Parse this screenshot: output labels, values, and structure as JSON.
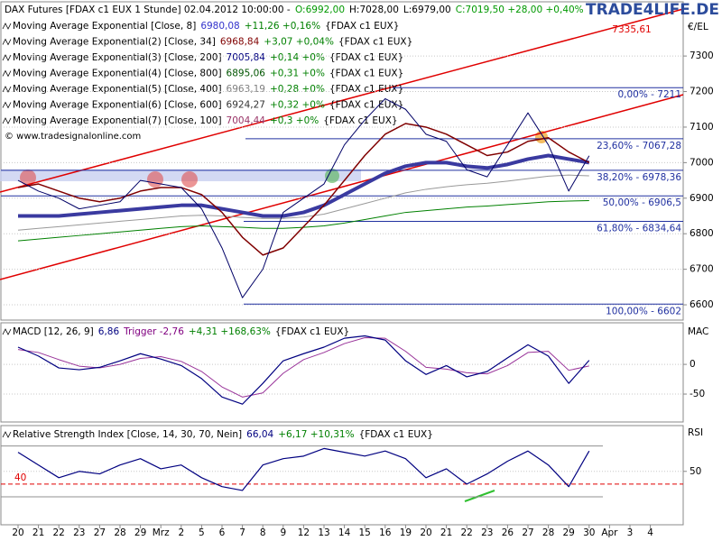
{
  "brand": "TRADE4LIFE.DE",
  "copyright": "© www.tradesignalonline.com",
  "chart_data": [
    {
      "type": "line",
      "title": "DAX Futures [FDAX c1 EUX  1 Stunde] 02.04.2012 10:00:00 -",
      "quote": [
        {
          "text": "O:6992,00",
          "color": "#009900"
        },
        {
          "text": "H:7028,00",
          "color": "#000000"
        },
        {
          "text": "L:6979,00",
          "color": "#000000"
        },
        {
          "text": "C:7019,50 +28,00 +0,40%",
          "color": "#009900"
        }
      ],
      "indicators": [
        {
          "name": "Moving Average Exponential [Close, 8]",
          "value": "6980,08",
          "change": "+11,26 +0,16%",
          "source": "{FDAX c1 EUX}",
          "color": "#3333cc"
        },
        {
          "name": "Moving Average Exponential(2) [Close, 34]",
          "value": "6968,84",
          "change": "+3,07 +0,04%",
          "source": "{FDAX c1 EUX}",
          "color": "#800000"
        },
        {
          "name": "Moving Average Exponential(3) [Close, 200]",
          "value": "7005,84",
          "change": "+0,14 +0%",
          "source": "{FDAX c1 EUX}",
          "color": "#000080"
        },
        {
          "name": "Moving Average Exponential(4) [Close, 800]",
          "value": "6895,06",
          "change": "+0,31 +0%",
          "source": "{FDAX c1 EUX}",
          "color": "#005500"
        },
        {
          "name": "Moving Average Exponential(5) [Close, 400]",
          "value": "6963,19",
          "change": "+0,28 +0%",
          "source": "{FDAX c1 EUX}",
          "color": "#808080"
        },
        {
          "name": "Moving Average Exponential(6) [Close, 600]",
          "value": "6924,27",
          "change": "+0,32 +0%",
          "source": "{FDAX c1 EUX}",
          "color": "#333333"
        },
        {
          "name": "Moving Average Exponential(7) [Close, 100]",
          "value": "7004,44",
          "change": "+0,3 +0%",
          "source": "{FDAX c1 EUX}",
          "color": "#993366"
        }
      ],
      "y_label": "€/EL",
      "channel_label": "7335,61",
      "ylim": [
        6557,
        7450
      ],
      "yticks": [
        6600,
        6700,
        6800,
        6900,
        7000,
        7100,
        7200,
        7300
      ],
      "grid": true,
      "fibonacci": [
        {
          "label": "0,00% - 7211",
          "value": 7211
        },
        {
          "label": "23,60% - 7067,28",
          "value": 7067.28
        },
        {
          "label": "38,20% - 6978,36",
          "value": 6978.36
        },
        {
          "label": "50,00% - 6906,5",
          "value": 6906.5
        },
        {
          "label": "61,80% - 6834,64",
          "value": 6834.64
        },
        {
          "label": "100,00% - 6602",
          "value": 6602
        }
      ],
      "series": [
        {
          "color": "#008000",
          "width": 1,
          "values": [
            6780,
            6785,
            6790,
            6795,
            6800,
            6805,
            6810,
            6815,
            6820,
            6822,
            6820,
            6818,
            6815,
            6815,
            6818,
            6822,
            6830,
            6840,
            6850,
            6860,
            6865,
            6870,
            6875,
            6878,
            6882,
            6886,
            6890,
            6892,
            6893,
            null,
            null,
            null
          ]
        },
        {
          "color": "#999999",
          "width": 1,
          "values": [
            6810,
            6815,
            6820,
            6825,
            6830,
            6835,
            6840,
            6845,
            6850,
            6852,
            6850,
            6846,
            6843,
            6843,
            6847,
            6855,
            6870,
            6885,
            6900,
            6915,
            6925,
            6932,
            6938,
            6942,
            6948,
            6955,
            6962,
            6965,
            6963,
            null,
            null,
            null
          ]
        },
        {
          "color": "#3a3aa0",
          "width": 4,
          "values": [
            6850,
            6850,
            6850,
            6855,
            6860,
            6865,
            6870,
            6875,
            6880,
            6880,
            6870,
            6860,
            6850,
            6850,
            6860,
            6880,
            6910,
            6940,
            6970,
            6990,
            7000,
            7000,
            6990,
            6985,
            6995,
            7010,
            7020,
            7010,
            7000,
            null,
            null,
            null
          ]
        },
        {
          "color": "#800000",
          "width": 1.5,
          "values": [
            6930,
            6940,
            6920,
            6900,
            6890,
            6900,
            6920,
            6930,
            6930,
            6910,
            6860,
            6790,
            6740,
            6760,
            6820,
            6880,
            6950,
            7020,
            7080,
            7110,
            7100,
            7080,
            7050,
            7020,
            7030,
            7060,
            7070,
            7030,
            7000,
            null,
            null,
            null
          ]
        },
        {
          "color": "#000066",
          "width": 1,
          "values": [
            6950,
            6920,
            6900,
            6870,
            6880,
            6890,
            6950,
            6940,
            6930,
            6870,
            6760,
            6620,
            6700,
            6860,
            6900,
            6940,
            7050,
            7120,
            7180,
            7150,
            7080,
            7060,
            6980,
            6960,
            7050,
            7140,
            7050,
            6920,
            7019.5,
            null,
            null,
            null
          ]
        }
      ]
    },
    {
      "type": "line",
      "header": [
        {
          "text": "MACD [12, 26, 9]",
          "color": "#000000"
        },
        {
          "text": "6,86",
          "color": "#000080"
        },
        {
          "text": "Trigger -2,76",
          "color": "#800080"
        },
        {
          "text": "+4,31 +168,63%",
          "color": "#008000"
        },
        {
          "text": "{FDAX c1 EUX}",
          "color": "#000000"
        }
      ],
      "y_label": "MAC",
      "ylim": [
        -97,
        70
      ],
      "yticks": [
        0,
        -50
      ],
      "grid": true,
      "series": [
        {
          "color": "#993399",
          "width": 1,
          "values": [
            25,
            20,
            8,
            -3,
            -6,
            0,
            10,
            13,
            5,
            -12,
            -38,
            -55,
            -48,
            -15,
            8,
            20,
            35,
            45,
            44,
            22,
            -5,
            -8,
            -14,
            -16,
            -2,
            20,
            22,
            -10,
            -2.76,
            null,
            null,
            null
          ]
        },
        {
          "color": "#000080",
          "width": 1.2,
          "values": [
            29,
            14,
            -6,
            -9,
            -5,
            6,
            18,
            9,
            -2,
            -24,
            -55,
            -67,
            -32,
            6,
            18,
            29,
            44,
            48,
            41,
            6,
            -17,
            -2,
            -21,
            -12,
            11,
            33,
            14,
            -32,
            6.86,
            null,
            null,
            null
          ]
        }
      ]
    },
    {
      "type": "line",
      "header": [
        {
          "text": "Relative Strength Index [Close, 14, 30, 70, Nein]",
          "color": "#000000"
        },
        {
          "text": "66,04",
          "color": "#000080"
        },
        {
          "text": "+6,17 +10,31%",
          "color": "#008000"
        },
        {
          "text": "{FDAX c1 EUX}",
          "color": "#000000"
        }
      ],
      "y_label": "RSI",
      "ylim": [
        8,
        86
      ],
      "yticks": [
        50
      ],
      "grid": true,
      "levels": [
        70,
        30
      ],
      "signal_level": 40,
      "categories": [
        "20",
        "21",
        "22",
        "23",
        "27",
        "28",
        "29",
        "Mrz",
        "2",
        "5",
        "6",
        "7",
        "8",
        "9",
        "12",
        "13",
        "14",
        "15",
        "16",
        "19",
        "20",
        "21",
        "22",
        "23",
        "26",
        "27",
        "28",
        "29",
        "30",
        "Apr",
        "3",
        "4"
      ],
      "series": [
        {
          "color": "#000080",
          "width": 1.2,
          "values": [
            65,
            55,
            45,
            50,
            48,
            55,
            60,
            52,
            55,
            45,
            38,
            35,
            55,
            60,
            62,
            68,
            65,
            62,
            66,
            60,
            45,
            52,
            40,
            48,
            58,
            66,
            55,
            38,
            66.04,
            null,
            null,
            null
          ]
        }
      ]
    }
  ]
}
